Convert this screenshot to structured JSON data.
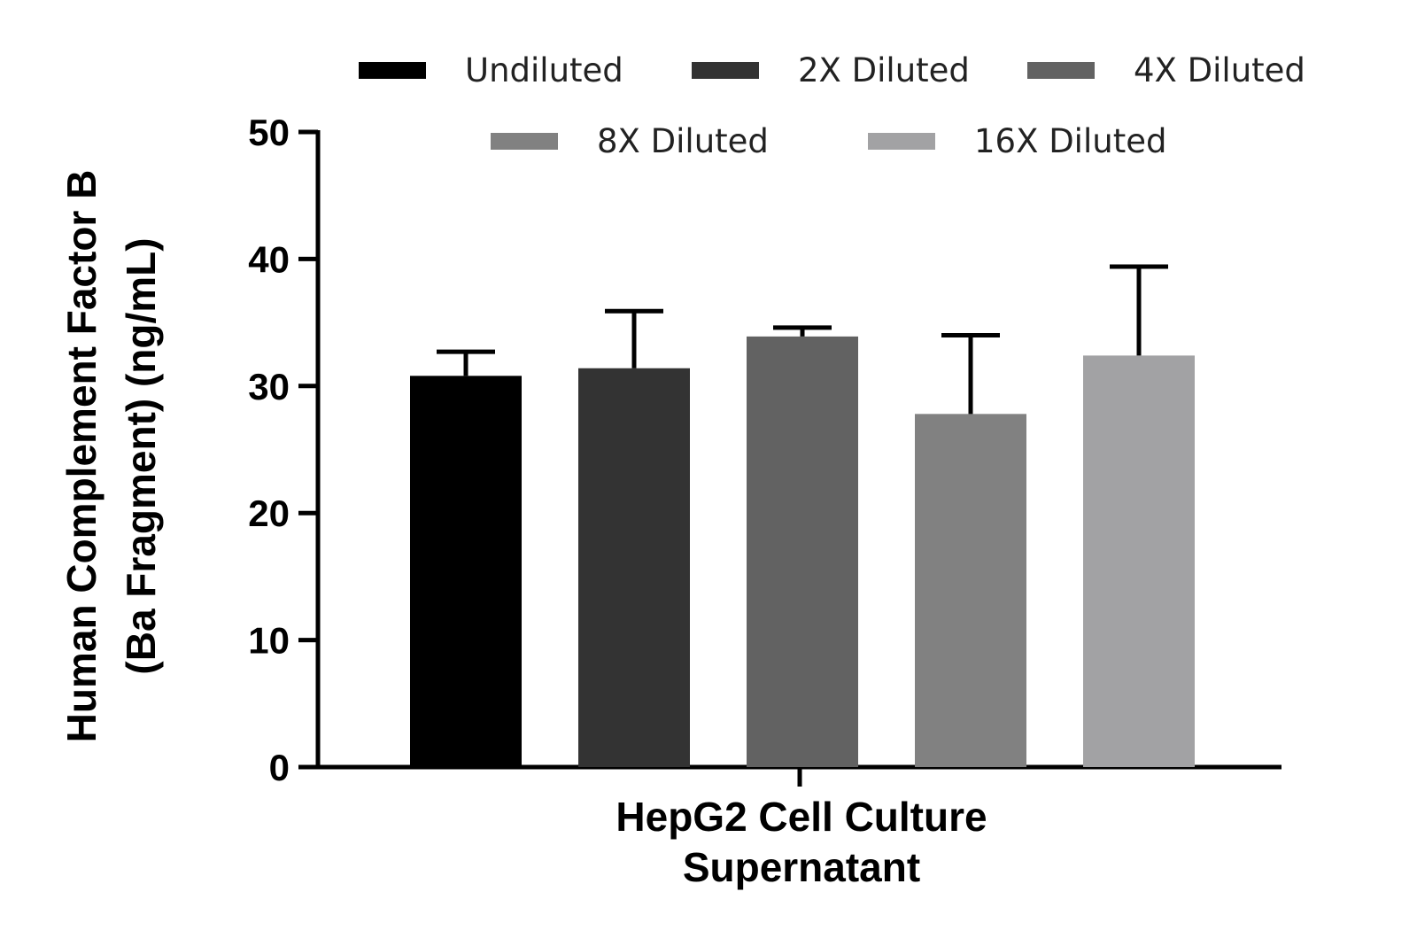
{
  "chart_data": {
    "type": "bar",
    "categories": [
      "HepG2 Cell Culture Supernatant"
    ],
    "xlabel_lines": [
      "HepG2 Cell Culture",
      "Supernatant"
    ],
    "ylabel_lines": [
      "Human Complement Factor B",
      "(Ba Fragment) (ng/mL)"
    ],
    "ylim": [
      0,
      50
    ],
    "yticks": [
      "0",
      "10",
      "20",
      "30",
      "40",
      "50"
    ],
    "grid": false,
    "legend_position": "top",
    "series": [
      {
        "name": "Undiluted",
        "value": 30.8,
        "error": 1.9,
        "color": "#000000"
      },
      {
        "name": "2X Diluted",
        "value": 31.4,
        "error": 4.5,
        "color": "#333333"
      },
      {
        "name": "4X Diluted",
        "value": 33.9,
        "error": 0.7,
        "color": "#626262"
      },
      {
        "name": "8X Diluted",
        "value": 27.8,
        "error": 6.2,
        "color": "#818181"
      },
      {
        "name": "16X Diluted",
        "value": 32.4,
        "error": 7.0,
        "color": "#a2a2a4"
      }
    ]
  }
}
